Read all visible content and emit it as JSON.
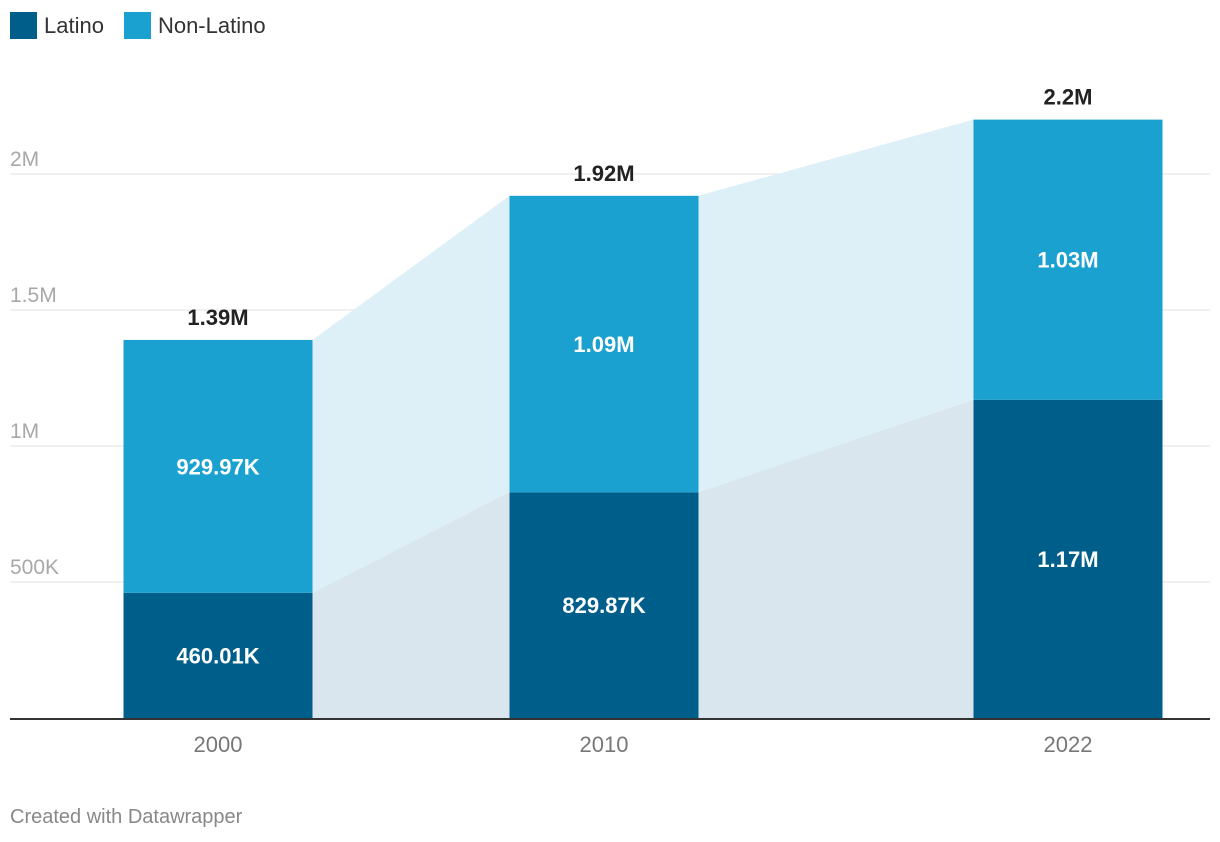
{
  "chart_data": {
    "type": "bar",
    "stacked": true,
    "title": "",
    "xlabel": "",
    "ylabel": "",
    "categories": [
      "2000",
      "2010",
      "2022"
    ],
    "series": [
      {
        "name": "Latino",
        "color": "#005f8a",
        "values": [
          460010,
          829870,
          1170000
        ],
        "labels": [
          "460.01K",
          "829.87K",
          "1.17M"
        ]
      },
      {
        "name": "Non-Latino",
        "color": "#1aa1cf",
        "values": [
          929970,
          1090000,
          1030000
        ],
        "labels": [
          "929.97K",
          "1.09M",
          "1.03M"
        ]
      }
    ],
    "totals": [
      1390000,
      1920000,
      2200000
    ],
    "total_labels": [
      "1.39M",
      "1.92M",
      "2.2M"
    ],
    "ylim": [
      0,
      2200000
    ],
    "yticks": [
      500000,
      1000000,
      1500000,
      2000000
    ],
    "ytick_labels": [
      "500K",
      "1M",
      "1.5M",
      "2M"
    ],
    "grid": true,
    "legend_position": "top-left"
  },
  "footer": {
    "credit": "Created with Datawrapper"
  }
}
